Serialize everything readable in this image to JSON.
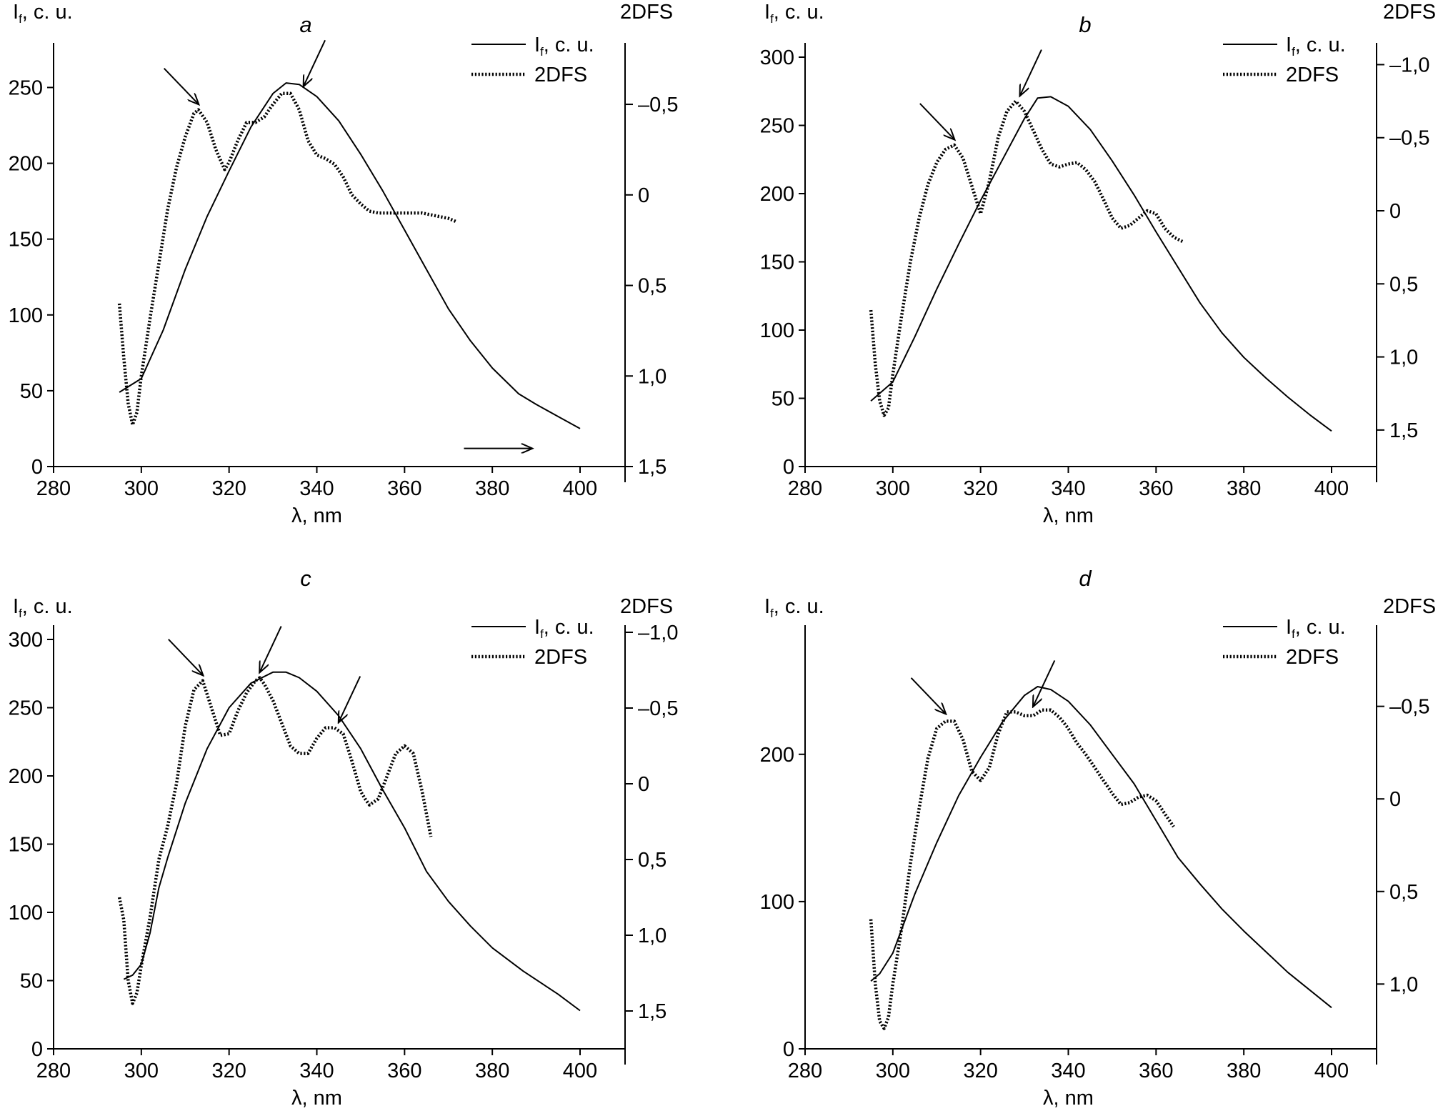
{
  "chart_data": [
    {
      "type": "line",
      "panel": "a",
      "title": "a",
      "xlabel": "λ, nm",
      "ylabel_left": "I_f, c. u.",
      "ylabel_right": "2DFS",
      "xlim": [
        280,
        410
      ],
      "ylim_left": [
        0,
        270
      ],
      "ylim_right": [
        1.5,
        -0.8
      ],
      "x_ticks": [
        "280",
        "300",
        "320",
        "340",
        "360",
        "380",
        "400"
      ],
      "y_left_ticks": [
        "0",
        "50",
        "100",
        "150",
        "200",
        "250"
      ],
      "y_right_ticks": [
        "1,5",
        "1,0",
        "0,5",
        "0",
        "–0,5"
      ],
      "legend": [
        "If, c. u.",
        "2DFS"
      ],
      "series": [
        {
          "name": "If, c. u.",
          "style": "solid",
          "x": [
            295,
            300,
            305,
            310,
            315,
            320,
            325,
            330,
            333,
            336,
            340,
            345,
            350,
            355,
            360,
            365,
            370,
            375,
            380,
            386,
            390,
            395,
            400
          ],
          "values": [
            49,
            58,
            90,
            130,
            165,
            195,
            224,
            246,
            253,
            252,
            244,
            228,
            206,
            182,
            156,
            130,
            104,
            83,
            65,
            48,
            41,
            33,
            25
          ]
        },
        {
          "name": "2DFS",
          "style": "dotted",
          "x": [
            295,
            296,
            297,
            298,
            299,
            300,
            302,
            304,
            306,
            308,
            310,
            312,
            313,
            315,
            317,
            319,
            320,
            322,
            324,
            326,
            328,
            330,
            332,
            334,
            336,
            338,
            340,
            342,
            344,
            346,
            348,
            350,
            352,
            354,
            356,
            358,
            360,
            362,
            364,
            366,
            368,
            370,
            372
          ],
          "values": [
            0.6,
            0.9,
            1.15,
            1.27,
            1.2,
            1.0,
            0.68,
            0.38,
            0.08,
            -0.15,
            -0.32,
            -0.45,
            -0.47,
            -0.4,
            -0.25,
            -0.14,
            -0.18,
            -0.3,
            -0.4,
            -0.4,
            -0.43,
            -0.5,
            -0.56,
            -0.56,
            -0.47,
            -0.3,
            -0.22,
            -0.2,
            -0.17,
            -0.1,
            0.0,
            0.05,
            0.09,
            0.1,
            0.1,
            0.1,
            0.1,
            0.1,
            0.1,
            0.11,
            0.12,
            0.13,
            0.15
          ]
        }
      ],
      "arrows": [
        {
          "x": 313,
          "y2dfs": -0.47
        },
        {
          "x": 337,
          "y2dfs": -0.57
        },
        {
          "x": 389,
          "y2dfs": 1.4,
          "direction": "right"
        }
      ]
    },
    {
      "type": "line",
      "panel": "b",
      "title": "b",
      "xlabel": "λ, nm",
      "ylabel_left": "I_f, c. u.",
      "ylabel_right": "2DFS",
      "xlim": [
        280,
        410
      ],
      "ylim_left": [
        0,
        300
      ],
      "ylim_right": [
        1.75,
        -1.1
      ],
      "x_ticks": [
        "280",
        "300",
        "320",
        "340",
        "360",
        "380",
        "400"
      ],
      "y_left_ticks": [
        "0",
        "50",
        "100",
        "150",
        "200",
        "250",
        "300"
      ],
      "y_right_ticks": [
        "1,5",
        "1,0",
        "0,5",
        "0",
        "–0,5",
        "–1,0"
      ],
      "legend": [
        "If, c. u.",
        "2DFS"
      ],
      "series": [
        {
          "name": "If, c. u.",
          "style": "solid",
          "x": [
            295,
            300,
            305,
            310,
            315,
            320,
            325,
            330,
            333,
            336,
            340,
            345,
            350,
            355,
            360,
            365,
            370,
            375,
            380,
            385,
            390,
            395,
            400
          ],
          "values": [
            48,
            62,
            95,
            130,
            163,
            195,
            225,
            255,
            270,
            271,
            264,
            247,
            224,
            199,
            172,
            146,
            120,
            98,
            80,
            65,
            51,
            38,
            26
          ]
        },
        {
          "name": "2DFS",
          "style": "dotted",
          "x": [
            295,
            296,
            297,
            298,
            299,
            300,
            302,
            304,
            306,
            308,
            310,
            312,
            314,
            316,
            318,
            320,
            322,
            324,
            326,
            328,
            330,
            332,
            334,
            336,
            338,
            340,
            342,
            344,
            346,
            348,
            350,
            352,
            354,
            356,
            358,
            360,
            362,
            364,
            366
          ],
          "values": [
            0.68,
            1.05,
            1.3,
            1.4,
            1.35,
            1.12,
            0.72,
            0.35,
            0.05,
            -0.18,
            -0.33,
            -0.42,
            -0.45,
            -0.36,
            -0.17,
            0.02,
            -0.2,
            -0.5,
            -0.68,
            -0.75,
            -0.68,
            -0.55,
            -0.42,
            -0.32,
            -0.3,
            -0.32,
            -0.33,
            -0.28,
            -0.2,
            -0.08,
            0.05,
            0.12,
            0.1,
            0.05,
            0.0,
            0.02,
            0.12,
            0.18,
            0.21
          ]
        }
      ],
      "arrows": [
        {
          "x": 314,
          "y2dfs": -0.45
        },
        {
          "x": 329,
          "y2dfs": -0.75
        }
      ]
    },
    {
      "type": "line",
      "panel": "c",
      "title": "c",
      "xlabel": "λ, nm",
      "ylabel_left": "I_f, c. u.",
      "ylabel_right": "2DFS",
      "xlim": [
        280,
        410
      ],
      "ylim_left": [
        0,
        300
      ],
      "ylim_right": [
        1.75,
        -1.0
      ],
      "x_ticks": [
        "280",
        "300",
        "320",
        "340",
        "360",
        "380",
        "400"
      ],
      "y_left_ticks": [
        "0",
        "50",
        "100",
        "150",
        "200",
        "250",
        "300"
      ],
      "y_right_ticks": [
        "1,5",
        "1,0",
        "0,5",
        "0",
        "–0,5",
        "–1,0"
      ],
      "legend": [
        "If, c. u.",
        "2DFS"
      ],
      "series": [
        {
          "name": "If, c. u.",
          "style": "solid",
          "x": [
            296,
            298,
            300,
            302,
            304,
            306,
            310,
            315,
            320,
            325,
            330,
            333,
            336,
            340,
            345,
            350,
            355,
            360,
            365,
            370,
            375,
            380,
            387,
            395,
            400
          ],
          "values": [
            51,
            54,
            62,
            85,
            118,
            140,
            180,
            220,
            250,
            268,
            276,
            276,
            272,
            262,
            244,
            220,
            190,
            162,
            130,
            108,
            90,
            74,
            57,
            40,
            28
          ]
        },
        {
          "name": "2DFS",
          "style": "dotted",
          "x": [
            295,
            296,
            297,
            298,
            299,
            300,
            302,
            304,
            306,
            308,
            310,
            312,
            314,
            316,
            318,
            320,
            322,
            324,
            326,
            327,
            328,
            330,
            332,
            334,
            336,
            338,
            340,
            342,
            344,
            346,
            348,
            350,
            351,
            352,
            353,
            354,
            356,
            358,
            360,
            362,
            364,
            366
          ],
          "values": [
            0.75,
            0.9,
            1.3,
            1.45,
            1.38,
            1.2,
            0.88,
            0.5,
            0.28,
            0.0,
            -0.38,
            -0.62,
            -0.68,
            -0.5,
            -0.32,
            -0.33,
            -0.48,
            -0.6,
            -0.68,
            -0.7,
            -0.66,
            -0.55,
            -0.4,
            -0.25,
            -0.2,
            -0.2,
            -0.3,
            -0.37,
            -0.37,
            -0.33,
            -0.15,
            0.05,
            0.1,
            0.14,
            0.12,
            0.1,
            -0.05,
            -0.2,
            -0.25,
            -0.2,
            0.05,
            0.35
          ]
        }
      ],
      "arrows": [
        {
          "x": 314,
          "y2dfs": -0.68
        },
        {
          "x": 327,
          "y2dfs": -0.7
        },
        {
          "x": 345,
          "y2dfs": -0.37
        }
      ]
    },
    {
      "type": "line",
      "panel": "d",
      "title": "d",
      "xlabel": "λ, nm",
      "ylabel_left": "I_f, c. u.",
      "ylabel_right": "2DFS",
      "xlim": [
        280,
        410
      ],
      "ylim_left": [
        0,
        278
      ],
      "ylim_right": [
        1.35,
        -0.9
      ],
      "x_ticks": [
        "280",
        "300",
        "320",
        "340",
        "360",
        "380",
        "400"
      ],
      "y_left_ticks": [
        "0",
        "100",
        "200"
      ],
      "y_right_ticks": [
        "1,0",
        "0,5",
        "0",
        "–0,5"
      ],
      "legend": [
        "If, c. u.",
        "2DFS"
      ],
      "series": [
        {
          "name": "If, c. u.",
          "style": "solid",
          "x": [
            295,
            297,
            300,
            305,
            310,
            315,
            320,
            325,
            330,
            333,
            336,
            340,
            345,
            350,
            355,
            360,
            365,
            370,
            375,
            380,
            390,
            400
          ],
          "values": [
            46,
            51,
            65,
            105,
            140,
            172,
            198,
            222,
            240,
            246,
            244,
            236,
            220,
            200,
            180,
            155,
            130,
            112,
            95,
            80,
            52,
            28
          ]
        },
        {
          "name": "2DFS",
          "style": "dotted",
          "x": [
            295,
            296,
            297,
            298,
            299,
            300,
            302,
            304,
            306,
            308,
            310,
            312,
            314,
            316,
            318,
            320,
            322,
            324,
            326,
            328,
            330,
            332,
            334,
            336,
            338,
            340,
            342,
            344,
            346,
            348,
            350,
            352,
            354,
            356,
            358,
            360,
            362,
            364
          ],
          "values": [
            0.65,
            1.0,
            1.2,
            1.24,
            1.18,
            1.0,
            0.7,
            0.35,
            0.05,
            -0.22,
            -0.38,
            -0.42,
            -0.42,
            -0.32,
            -0.15,
            -0.1,
            -0.17,
            -0.35,
            -0.47,
            -0.47,
            -0.45,
            -0.45,
            -0.48,
            -0.48,
            -0.44,
            -0.38,
            -0.3,
            -0.24,
            -0.17,
            -0.1,
            -0.03,
            0.03,
            0.02,
            -0.01,
            -0.02,
            0.01,
            0.08,
            0.15
          ]
        }
      ],
      "arrows": [
        {
          "x": 312,
          "y2dfs": -0.43
        },
        {
          "x": 332,
          "y2dfs": -0.47
        }
      ]
    }
  ]
}
